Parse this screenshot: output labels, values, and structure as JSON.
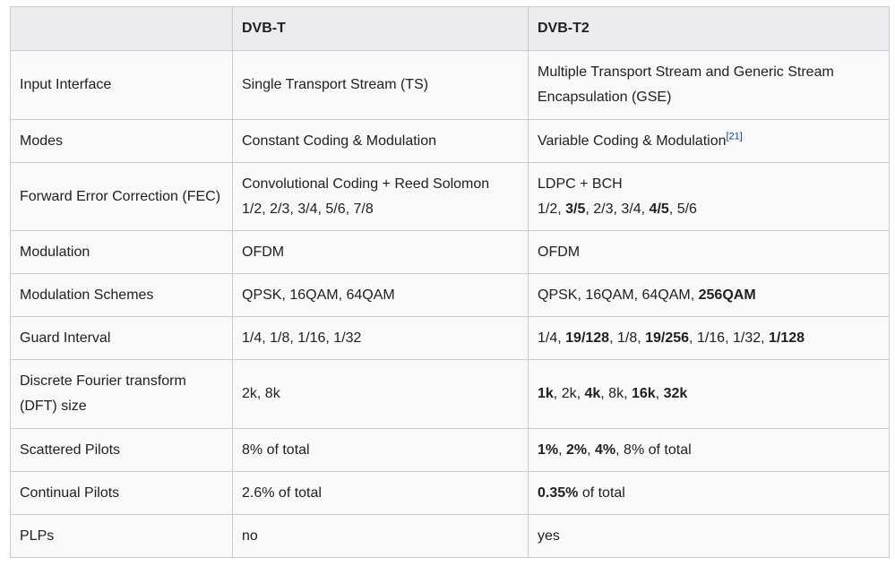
{
  "table": {
    "headers": [
      "",
      "DVB-T",
      "DVB-T2"
    ],
    "rows": [
      {
        "label": "Input Interface",
        "dvbt": "Single Transport Stream (TS)",
        "dvbt2": "Multiple Transport Stream and Generic Stream Encapsulation (GSE)"
      },
      {
        "label": "Modes",
        "dvbt": "Constant Coding & Modulation",
        "dvbt2": "Variable Coding & Modulation",
        "dvbt2_ref": "[21]"
      },
      {
        "label": "Forward Error Correction (FEC)",
        "dvbt_line1": "Convolutional Coding + Reed Solomon",
        "dvbt_line2": "1/2, 2/3, 3/4, 5/6, 7/8",
        "dvbt2_line1": "LDPC + BCH",
        "dvbt2_rates": [
          "1/2, ",
          "3/5",
          ", 2/3, 3/4, ",
          "4/5",
          ", 5/6"
        ]
      },
      {
        "label": "Modulation",
        "dvbt": "OFDM",
        "dvbt2": "OFDM"
      },
      {
        "label": "Modulation Schemes",
        "dvbt": "QPSK, 16QAM, 64QAM",
        "dvbt2_parts": [
          "QPSK, 16QAM, 64QAM, ",
          "256QAM"
        ]
      },
      {
        "label": "Guard Interval",
        "dvbt": "1/4, 1/8, 1/16, 1/32",
        "dvbt2_parts": [
          "1/4, ",
          "19/128",
          ", 1/8, ",
          "19/256",
          ", 1/16, 1/32, ",
          "1/128"
        ]
      },
      {
        "label": "Discrete Fourier transform (DFT) size",
        "dvbt": "2k, 8k",
        "dvbt2_parts": [
          "1k",
          ", 2k, ",
          "4k",
          ", 8k, ",
          "16k",
          ", ",
          "32k"
        ]
      },
      {
        "label": "Scattered Pilots",
        "dvbt": "8% of total",
        "dvbt2_parts": [
          "1%",
          ", ",
          "2%",
          ", ",
          "4%",
          ", 8% of total"
        ]
      },
      {
        "label": "Continual Pilots",
        "dvbt": "2.6% of total",
        "dvbt2_parts": [
          "0.35%",
          " of total"
        ]
      },
      {
        "label": "PLPs",
        "dvbt": "no",
        "dvbt2": "yes"
      }
    ]
  }
}
